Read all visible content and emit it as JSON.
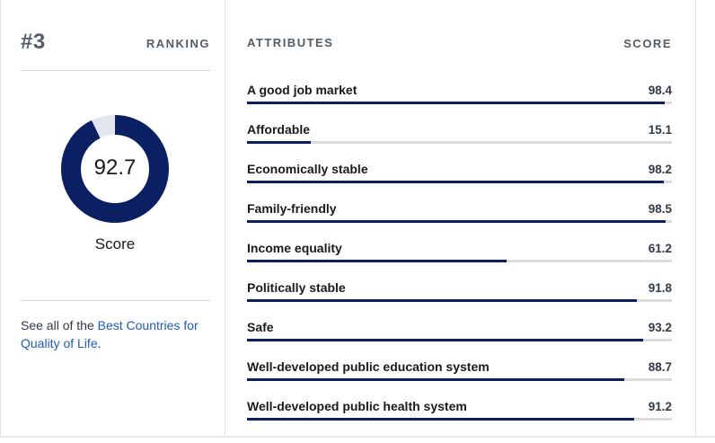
{
  "ranking": {
    "rank": "#3",
    "label": "RANKING"
  },
  "score": {
    "value": "92.7",
    "fraction": 0.927,
    "label": "Score"
  },
  "see_all": {
    "prefix": "See all of the ",
    "link_text": "Best Countries for Quality of Life",
    "suffix": "."
  },
  "attributes": {
    "header": "ATTRIBUTES",
    "score_header": "SCORE",
    "items": [
      {
        "name": "A good job market",
        "score": "98.4",
        "fraction": 0.984
      },
      {
        "name": "Affordable",
        "score": "15.1",
        "fraction": 0.151
      },
      {
        "name": "Economically stable",
        "score": "98.2",
        "fraction": 0.982
      },
      {
        "name": "Family-friendly",
        "score": "98.5",
        "fraction": 0.985
      },
      {
        "name": "Income equality",
        "score": "61.2",
        "fraction": 0.612
      },
      {
        "name": "Politically stable",
        "score": "91.8",
        "fraction": 0.918
      },
      {
        "name": "Safe",
        "score": "93.2",
        "fraction": 0.932
      },
      {
        "name": "Well-developed public education system",
        "score": "88.7",
        "fraction": 0.887
      },
      {
        "name": "Well-developed public health system",
        "score": "91.2",
        "fraction": 0.912
      }
    ]
  },
  "colors": {
    "accent": "#0b1f63",
    "track": "#dcdcdc",
    "donut_track": "#e2e6ee",
    "link": "#1f5bbf"
  }
}
